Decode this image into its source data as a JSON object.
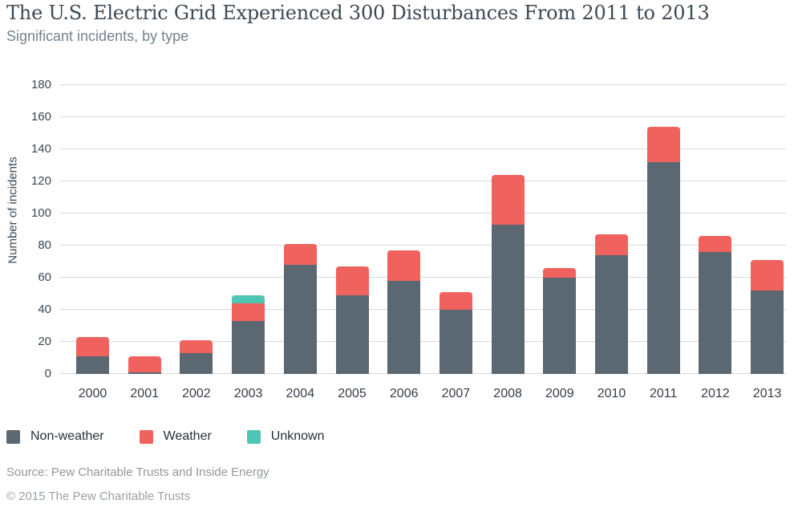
{
  "header": {
    "title": "The U.S. Electric Grid Experienced 300 Disturbances From 2011 to 2013",
    "subtitle": "Significant incidents, by type"
  },
  "chart_data": {
    "type": "bar",
    "stacked": true,
    "title": "The U.S. Electric Grid Experienced 300 Disturbances From 2011 to 2013",
    "subtitle": "Significant incidents, by type",
    "xlabel": "",
    "ylabel": "Number of incidents",
    "ylim": [
      0,
      180
    ],
    "ytick_step": 20,
    "grid": true,
    "legend_position": "bottom-left",
    "categories": [
      "2000",
      "2001",
      "2002",
      "2003",
      "2004",
      "2005",
      "2006",
      "2007",
      "2008",
      "2009",
      "2010",
      "2011",
      "2012",
      "2013"
    ],
    "series": [
      {
        "name": "Non-weather",
        "color": "#5b6771",
        "values": [
          11,
          1,
          13,
          33,
          68,
          49,
          58,
          40,
          93,
          60,
          74,
          132,
          76,
          52
        ]
      },
      {
        "name": "Weather",
        "color": "#f0625e",
        "values": [
          12,
          10,
          8,
          11,
          13,
          18,
          19,
          11,
          31,
          6,
          13,
          22,
          10,
          19
        ]
      },
      {
        "name": "Unknown",
        "color": "#4ec6b3",
        "values": [
          0,
          0,
          0,
          5,
          0,
          0,
          0,
          0,
          0,
          0,
          0,
          0,
          0,
          0
        ]
      }
    ],
    "totals": [
      23,
      11,
      21,
      49,
      81,
      67,
      77,
      51,
      124,
      66,
      87,
      154,
      86,
      71
    ]
  },
  "footer": {
    "source": "Source: Pew Charitable Trusts and Inside Energy",
    "copyright": "© 2015 The Pew Charitable Trusts"
  }
}
